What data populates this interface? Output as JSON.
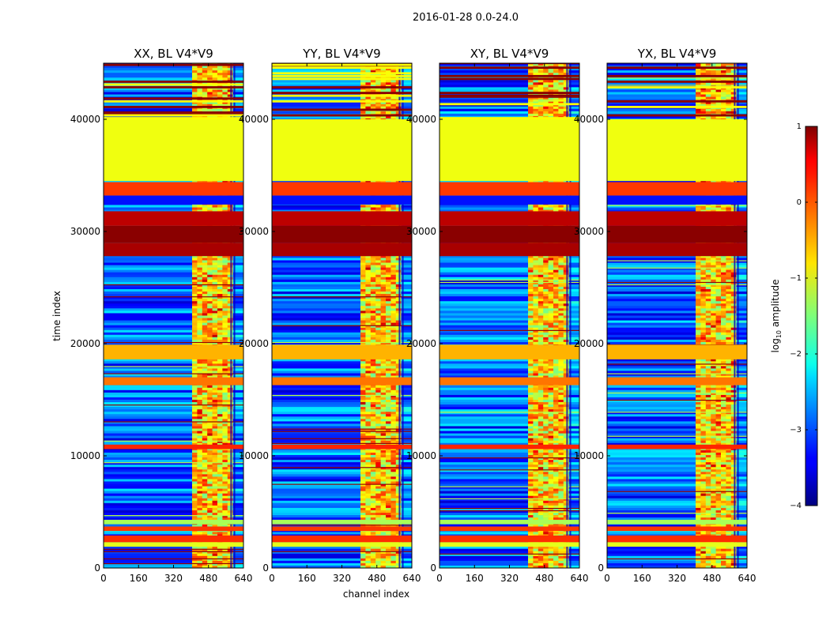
{
  "chart_data": {
    "type": "heatmap",
    "suptitle": "2016-01-28 0.0-24.0",
    "xlabel": "channel index",
    "ylabel": "time index",
    "xlim": [
      0,
      640
    ],
    "ylim": [
      0,
      45000
    ],
    "xticks": [
      0,
      160,
      320,
      480,
      640
    ],
    "yticks": [
      0,
      10000,
      20000,
      30000,
      40000
    ],
    "xtick_labels": [
      "0",
      "160",
      "320",
      "480",
      "640"
    ],
    "ytick_labels": [
      "0",
      "10000",
      "20000",
      "30000",
      "40000"
    ],
    "colorbar": {
      "label_prefix": "log",
      "label_sub": "10",
      "label_suffix": " amplitude",
      "range": [
        -4,
        1
      ],
      "ticks": [
        1,
        0,
        -1,
        -2,
        -3,
        -4
      ],
      "tick_labels": [
        "1",
        "0",
        "−1",
        "−2",
        "−3",
        "−4"
      ],
      "colormap": "jet"
    },
    "panels": [
      {
        "title": "XX, BL V4*V9",
        "band_start": 405
      },
      {
        "title": "YY, BL V4*V9",
        "band_start": 405
      },
      {
        "title": "XY, BL V4*V9",
        "band_start": 405
      },
      {
        "title": "YX, BL V4*V9",
        "band_start": 405
      }
    ],
    "channel_band": {
      "start": 405,
      "end": 590,
      "edge_channels": [
        580,
        595
      ]
    },
    "time_blocks": [
      {
        "y0": 34500,
        "y1": 40000,
        "value": -0.95
      },
      {
        "y0": 33200,
        "y1": 34400,
        "value": 0.1
      },
      {
        "y0": 32400,
        "y1": 33200,
        "value": -3.3
      },
      {
        "y0": 29000,
        "y1": 30500,
        "value": 0.95
      },
      {
        "y0": 27800,
        "y1": 29000,
        "value": 0.8
      },
      {
        "y0": 30500,
        "y1": 31800,
        "value": 0.7
      },
      {
        "y0": 18600,
        "y1": 19900,
        "value": -0.5
      },
      {
        "y0": 16300,
        "y1": 17000,
        "value": -0.2
      },
      {
        "y0": 10600,
        "y1": 11000,
        "value": 0.2
      },
      {
        "y0": 3900,
        "y1": 4300,
        "value": -1.3
      },
      {
        "y0": 3300,
        "y1": 3700,
        "value": 0.1
      },
      {
        "y0": 2300,
        "y1": 2900,
        "value": 0.15
      },
      {
        "y0": 1900,
        "y1": 2300,
        "value": -1.0
      }
    ]
  }
}
